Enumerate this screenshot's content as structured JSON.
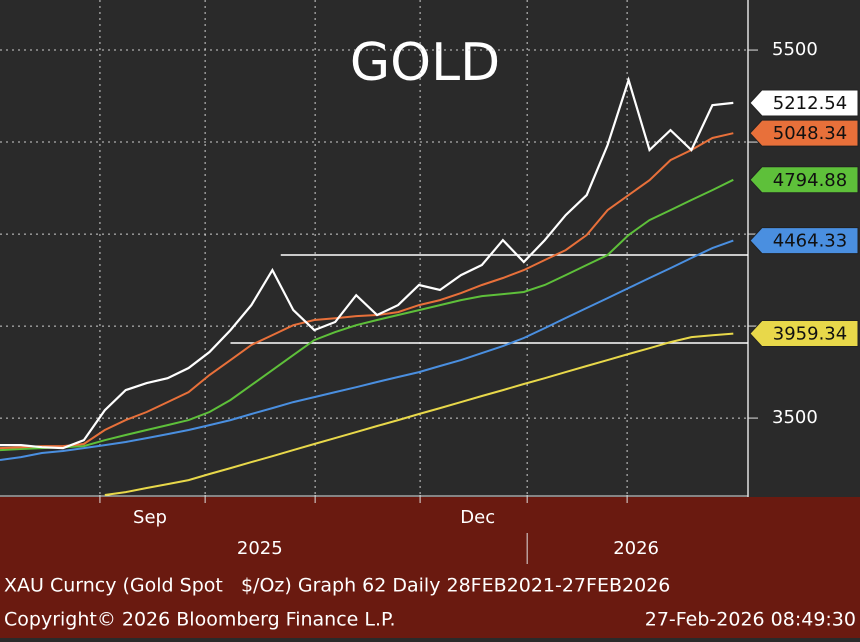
{
  "chart_data": {
    "type": "line",
    "title": "GOLD",
    "xlim": [
      0,
      35.7
    ],
    "ylim": [
      3082,
      5772
    ],
    "yticks": [
      3500,
      5500
    ],
    "ygrid": [
      3500,
      4000,
      4500,
      5000,
      5500
    ],
    "grid": true,
    "xgrid": [
      4.77,
      9.79,
      15.04,
      20.05,
      25.16,
      29.93
    ],
    "xticks": [
      {
        "value": 7.16,
        "label": "Sep"
      },
      {
        "value": 22.8,
        "label": "Dec"
      }
    ],
    "year_ticks": [
      {
        "value": 12.4,
        "label": "2025"
      },
      {
        "value": 30.36,
        "label": "2026"
      }
    ],
    "year_divider": 25.16,
    "levels": [
      {
        "value": 4386,
        "from": 13.4
      },
      {
        "value": 3908,
        "from": 11
      }
    ],
    "series": [
      {
        "color": "#ffffff",
        "values": [
          3353,
          3353,
          3342,
          3337,
          3380,
          3543,
          3652,
          3690,
          3717,
          3772,
          3859,
          3978,
          4114,
          4304,
          4087,
          3978,
          4022,
          4168,
          4060,
          4114,
          4223,
          4196,
          4277,
          4332,
          4467,
          4348,
          4467,
          4603,
          4712,
          4984,
          5337,
          4957,
          5065,
          4957,
          5201,
          5212.54
        ]
      },
      {
        "color": "#e8703a",
        "values": [
          3337,
          3342,
          3348,
          3348,
          3359,
          3435,
          3489,
          3533,
          3587,
          3641,
          3734,
          3815,
          3897,
          3951,
          4005,
          4033,
          4043,
          4054,
          4060,
          4076,
          4114,
          4141,
          4179,
          4223,
          4261,
          4304,
          4359,
          4413,
          4495,
          4630,
          4712,
          4793,
          4902,
          4957,
          5022,
          5048.34
        ]
      },
      {
        "color": "#5ec03a",
        "values": [
          3326,
          3332,
          3337,
          3342,
          3348,
          3380,
          3408,
          3435,
          3462,
          3489,
          3533,
          3598,
          3679,
          3761,
          3842,
          3924,
          3967,
          4005,
          4033,
          4060,
          4087,
          4114,
          4141,
          4163,
          4174,
          4185,
          4223,
          4277,
          4332,
          4386,
          4495,
          4576,
          4630,
          4685,
          4739,
          4794.88
        ]
      },
      {
        "color": "#4a8fe0",
        "values": [
          3272,
          3288,
          3310,
          3321,
          3337,
          3353,
          3370,
          3391,
          3413,
          3435,
          3462,
          3489,
          3522,
          3554,
          3587,
          3614,
          3641,
          3668,
          3696,
          3723,
          3750,
          3783,
          3815,
          3853,
          3891,
          3935,
          3989,
          4044,
          4098,
          4152,
          4207,
          4261,
          4315,
          4370,
          4424,
          4464.33
        ]
      },
      {
        "color": "#e8d84a",
        "values": [
          null,
          null,
          null,
          null,
          null,
          3082,
          3098,
          3120,
          3141,
          3163,
          3196,
          3228,
          3261,
          3293,
          3326,
          3359,
          3391,
          3424,
          3457,
          3489,
          3522,
          3554,
          3587,
          3620,
          3652,
          3685,
          3717,
          3750,
          3783,
          3815,
          3848,
          3880,
          3913,
          3940,
          3950,
          3959.34
        ]
      }
    ],
    "footer": [
      "XAU Curncy (Gold Spot   $/Oz) Graph 62 Daily 28FEB2021-27FEB2026",
      "Copyright© 2026 Bloomberg Finance L.P.",
      "27-Feb-2026 08:49:30"
    ]
  }
}
